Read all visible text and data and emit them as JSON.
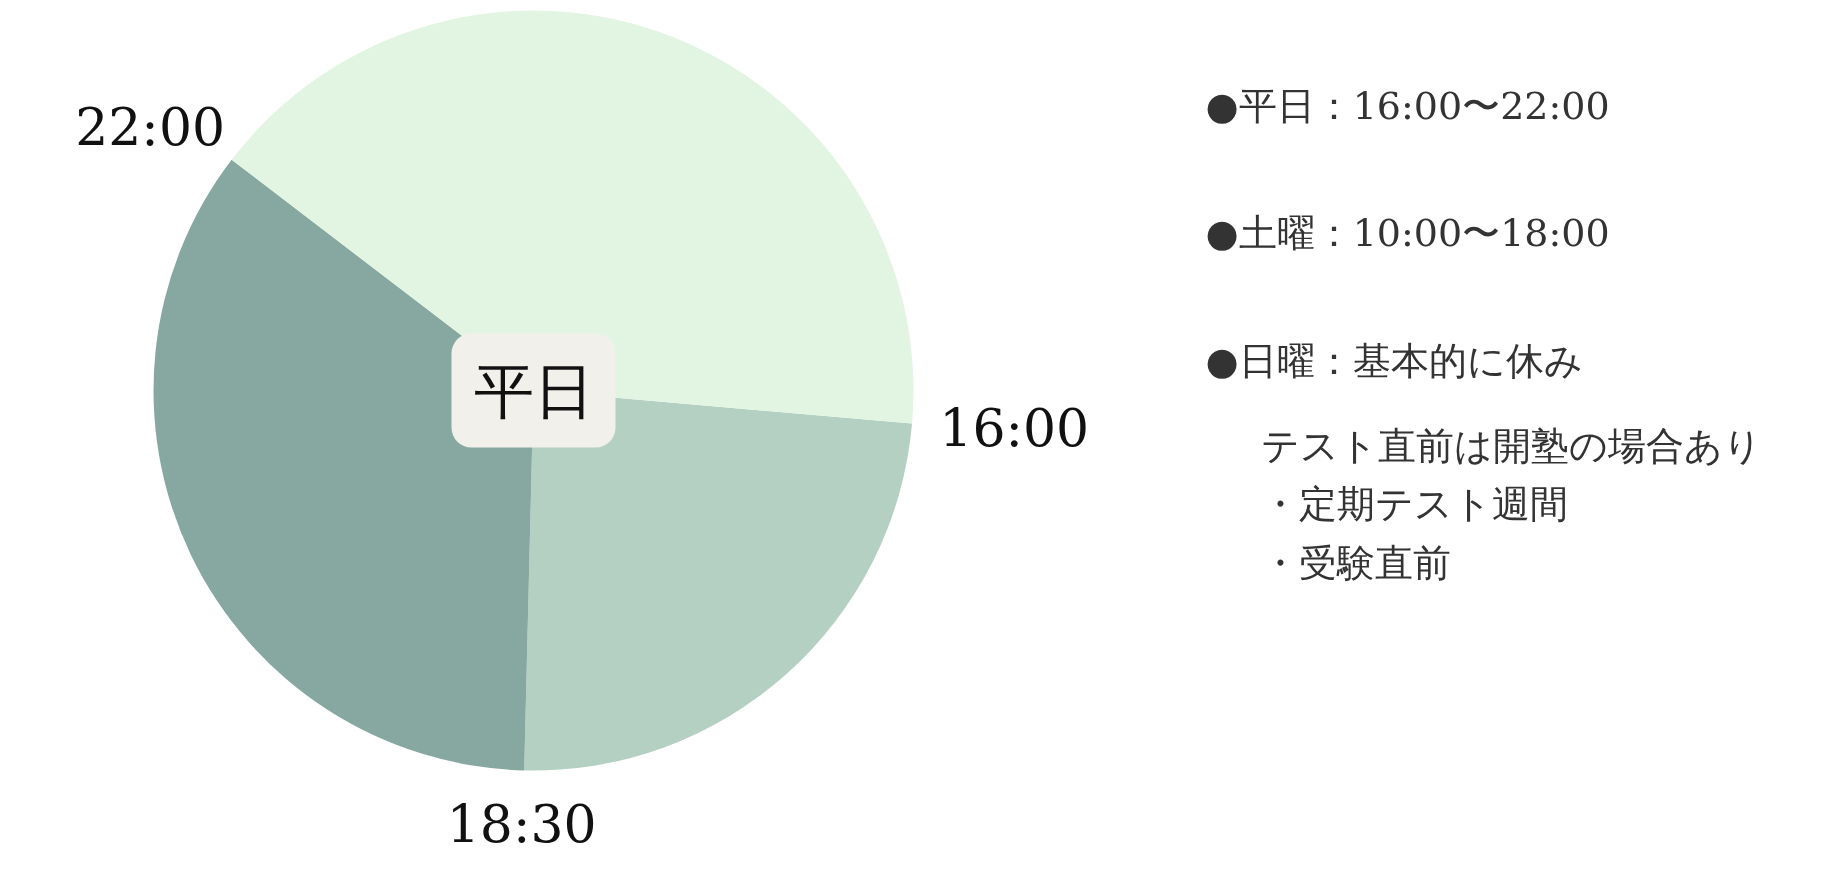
{
  "chart_data": {
    "type": "pie",
    "title": "平日",
    "categories": [
      null,
      null,
      null
    ],
    "values": [
      24,
      35,
      41
    ],
    "colors": [
      "#b4d0c2",
      "#86a8a1",
      "#e2f5e2"
    ],
    "annotations": [
      "16:00",
      "18:30",
      "22:00",
      "●平日：16:00〜22:00",
      "●土曜：10:00〜18:00",
      "●日曜：基本的に休み",
      "テスト直前は開塾の場合あり",
      "・定期テスト週間",
      "・受験直前"
    ]
  }
}
